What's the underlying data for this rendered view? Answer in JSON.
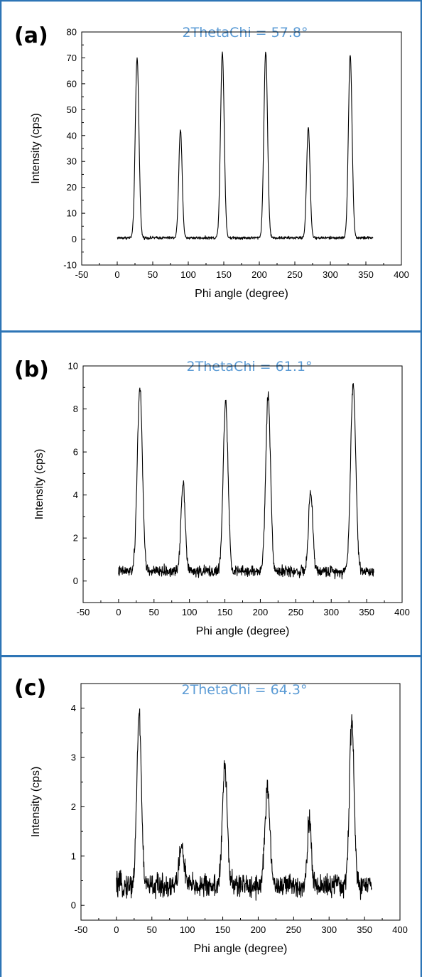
{
  "colors": {
    "frame": "#2e75b6",
    "title": "#5b9bd5",
    "trace": "#000000",
    "axes": "#000000"
  },
  "chart_data": [
    {
      "type": "line",
      "panel_label": "(a)",
      "title": "2ThetaChi = 57.8°",
      "xlabel": "Phi angle (degree)",
      "ylabel": "Intensity (cps)",
      "xlim": [
        -50,
        400
      ],
      "ylim": [
        -10,
        80
      ],
      "xticks": [
        -50,
        0,
        50,
        100,
        150,
        200,
        250,
        300,
        350,
        400
      ],
      "yticks": [
        -10,
        0,
        10,
        20,
        30,
        40,
        50,
        60,
        70,
        80
      ],
      "x_range": [
        0,
        360
      ],
      "baseline": 0.5,
      "noise": 0.4,
      "peaks": [
        {
          "x": 28,
          "height": 70,
          "width": 2.6
        },
        {
          "x": 89,
          "height": 42,
          "width": 2.4
        },
        {
          "x": 148,
          "height": 72,
          "width": 2.6
        },
        {
          "x": 209,
          "height": 72.5,
          "width": 2.6
        },
        {
          "x": 269,
          "height": 43,
          "width": 2.4
        },
        {
          "x": 328,
          "height": 71,
          "width": 2.6
        }
      ]
    },
    {
      "type": "line",
      "panel_label": "(b)",
      "title": "2ThetaChi = 61.1°",
      "xlabel": "Phi angle (degree)",
      "ylabel": "Intensity (cps)",
      "xlim": [
        -50,
        400
      ],
      "ylim": [
        -1,
        10
      ],
      "xticks": [
        -50,
        0,
        50,
        100,
        150,
        200,
        250,
        300,
        350,
        400
      ],
      "yticks": [
        0,
        2,
        4,
        6,
        8,
        10
      ],
      "x_range": [
        0,
        360
      ],
      "baseline": 0.45,
      "noise": 0.18,
      "peaks": [
        {
          "x": 30,
          "height": 9.0,
          "width": 3.6
        },
        {
          "x": 91,
          "height": 4.6,
          "width": 3.0
        },
        {
          "x": 151,
          "height": 8.3,
          "width": 3.4
        },
        {
          "x": 211,
          "height": 8.6,
          "width": 3.4
        },
        {
          "x": 271,
          "height": 4.1,
          "width": 3.0
        },
        {
          "x": 331,
          "height": 9.2,
          "width": 3.6
        }
      ]
    },
    {
      "type": "line",
      "panel_label": "(c)",
      "title": "2ThetaChi = 64.3°",
      "xlabel": "Phi angle (degree)",
      "ylabel": "Intensity (cps)",
      "xlim": [
        -50,
        400
      ],
      "ylim": [
        -0.3,
        4.5
      ],
      "xticks": [
        -50,
        0,
        50,
        100,
        150,
        200,
        250,
        300,
        350,
        400
      ],
      "yticks": [
        0,
        1,
        2,
        3,
        4
      ],
      "x_range": [
        0,
        360
      ],
      "baseline": 0.4,
      "noise": 0.17,
      "peaks": [
        {
          "x": 32,
          "height": 3.9,
          "width": 3.2
        },
        {
          "x": 92,
          "height": 1.2,
          "width": 3.5
        },
        {
          "x": 153,
          "height": 2.8,
          "width": 3.4
        },
        {
          "x": 213,
          "height": 2.3,
          "width": 3.6
        },
        {
          "x": 272,
          "height": 1.8,
          "width": 2.6
        },
        {
          "x": 332,
          "height": 3.8,
          "width": 3.2
        }
      ]
    }
  ]
}
